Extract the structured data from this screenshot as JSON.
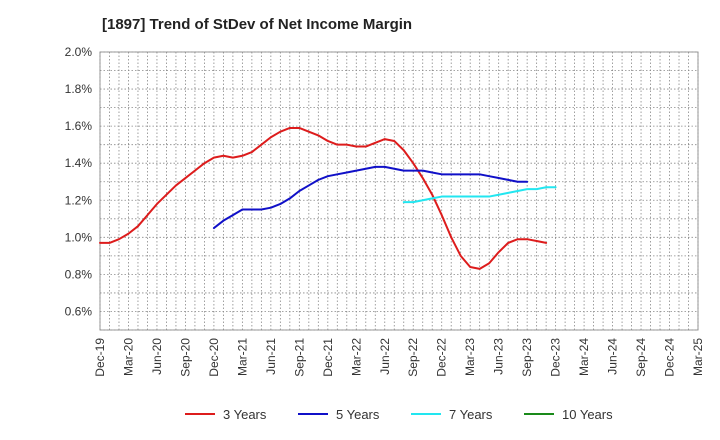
{
  "chart_data": {
    "type": "line",
    "title": "[1897]  Trend of StDev of Net Income Margin",
    "xlabel": "",
    "ylabel": "",
    "x_ticks": [
      "Dec-19",
      "Mar-20",
      "Jun-20",
      "Sep-20",
      "Dec-20",
      "Mar-21",
      "Jun-21",
      "Sep-21",
      "Dec-21",
      "Mar-22",
      "Jun-22",
      "Sep-22",
      "Dec-22",
      "Mar-23",
      "Jun-23",
      "Sep-23",
      "Dec-23",
      "Mar-24",
      "Jun-24",
      "Sep-24",
      "Dec-24",
      "Mar-25"
    ],
    "y_ticks": [
      "0.6%",
      "0.8%",
      "1.0%",
      "1.2%",
      "1.4%",
      "1.6%",
      "1.8%",
      "2.0%"
    ],
    "ylim": [
      0.5,
      2.0
    ],
    "grid": true,
    "legend_position": "bottom",
    "series": [
      {
        "name": "3 Years",
        "color": "#dd1c1c",
        "points": [
          [
            0,
            0.97
          ],
          [
            1,
            0.97
          ],
          [
            2,
            0.99
          ],
          [
            3,
            1.02
          ],
          [
            4,
            1.06
          ],
          [
            5,
            1.12
          ],
          [
            6,
            1.18
          ],
          [
            7,
            1.23
          ],
          [
            8,
            1.28
          ],
          [
            9,
            1.32
          ],
          [
            10,
            1.36
          ],
          [
            11,
            1.4
          ],
          [
            12,
            1.43
          ],
          [
            13,
            1.44
          ],
          [
            14,
            1.43
          ],
          [
            15,
            1.44
          ],
          [
            16,
            1.46
          ],
          [
            17,
            1.5
          ],
          [
            18,
            1.54
          ],
          [
            19,
            1.57
          ],
          [
            20,
            1.59
          ],
          [
            21,
            1.59
          ],
          [
            22,
            1.57
          ],
          [
            23,
            1.55
          ],
          [
            24,
            1.52
          ],
          [
            25,
            1.5
          ],
          [
            26,
            1.5
          ],
          [
            27,
            1.49
          ],
          [
            28,
            1.49
          ],
          [
            29,
            1.51
          ],
          [
            30,
            1.53
          ],
          [
            31,
            1.52
          ],
          [
            32,
            1.47
          ],
          [
            33,
            1.4
          ],
          [
            34,
            1.32
          ],
          [
            35,
            1.23
          ],
          [
            36,
            1.12
          ],
          [
            37,
            1.0
          ],
          [
            38,
            0.9
          ],
          [
            39,
            0.84
          ],
          [
            40,
            0.83
          ],
          [
            41,
            0.86
          ],
          [
            42,
            0.92
          ],
          [
            43,
            0.97
          ],
          [
            44,
            0.99
          ],
          [
            45,
            0.99
          ],
          [
            46,
            0.98
          ],
          [
            47,
            0.97
          ]
        ]
      },
      {
        "name": "5 Years",
        "color": "#1010c8",
        "points": [
          [
            12,
            1.05
          ],
          [
            13,
            1.09
          ],
          [
            14,
            1.12
          ],
          [
            15,
            1.15
          ],
          [
            16,
            1.15
          ],
          [
            17,
            1.15
          ],
          [
            18,
            1.16
          ],
          [
            19,
            1.18
          ],
          [
            20,
            1.21
          ],
          [
            21,
            1.25
          ],
          [
            22,
            1.28
          ],
          [
            23,
            1.31
          ],
          [
            24,
            1.33
          ],
          [
            25,
            1.34
          ],
          [
            26,
            1.35
          ],
          [
            27,
            1.36
          ],
          [
            28,
            1.37
          ],
          [
            29,
            1.38
          ],
          [
            30,
            1.38
          ],
          [
            31,
            1.37
          ],
          [
            32,
            1.36
          ],
          [
            33,
            1.36
          ],
          [
            34,
            1.36
          ],
          [
            35,
            1.35
          ],
          [
            36,
            1.34
          ],
          [
            37,
            1.34
          ],
          [
            38,
            1.34
          ],
          [
            39,
            1.34
          ],
          [
            40,
            1.34
          ],
          [
            41,
            1.33
          ],
          [
            42,
            1.32
          ],
          [
            43,
            1.31
          ],
          [
            44,
            1.3
          ],
          [
            45,
            1.3
          ]
        ]
      },
      {
        "name": "7 Years",
        "color": "#22e6f0",
        "points": [
          [
            32,
            1.19
          ],
          [
            33,
            1.19
          ],
          [
            34,
            1.2
          ],
          [
            35,
            1.21
          ],
          [
            36,
            1.22
          ],
          [
            37,
            1.22
          ],
          [
            38,
            1.22
          ],
          [
            39,
            1.22
          ],
          [
            40,
            1.22
          ],
          [
            41,
            1.22
          ],
          [
            42,
            1.23
          ],
          [
            43,
            1.24
          ],
          [
            44,
            1.25
          ],
          [
            45,
            1.26
          ],
          [
            46,
            1.26
          ],
          [
            47,
            1.27
          ],
          [
            48,
            1.27
          ]
        ]
      },
      {
        "name": "10 Years",
        "color": "#1a8a1a",
        "points": []
      }
    ]
  }
}
